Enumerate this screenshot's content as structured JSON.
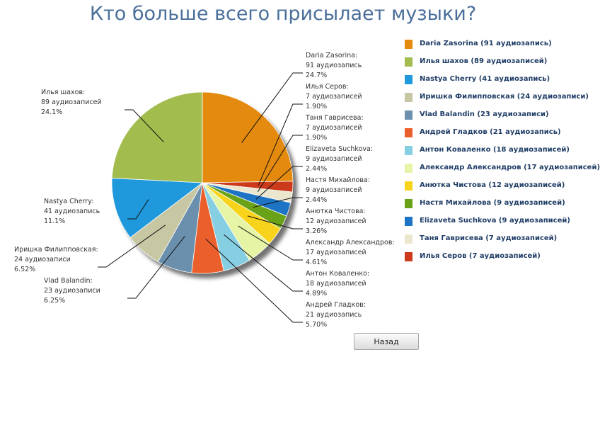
{
  "chart_data": {
    "type": "pie",
    "title": "Кто больше всего присылает музыки?",
    "slices": [
      {
        "name": "Daria Zasorina",
        "value": 91,
        "count_text": "91 аудиозапись",
        "percent_text": "24.7%",
        "color": "#e48a0e",
        "legend": "Daria Zasorina (91 аудиозапись)"
      },
      {
        "name": "Илья Серов",
        "value": 7,
        "count_text": "7 аудиозаписей",
        "percent_text": "1.90%",
        "color": "#cc3a1c",
        "legend": "Илья Серов (7 аудиозаписей)"
      },
      {
        "name": "Таня Гаврисева",
        "value": 7,
        "count_text": "7 аудиозаписей",
        "percent_text": "1.90%",
        "color": "#ebe7cf",
        "legend": "Таня Гаврисева (7 аудиозаписей)"
      },
      {
        "name": "Elizaveta Suchkova",
        "value": 9,
        "count_text": "9 аудиозаписей",
        "percent_text": "2.44%",
        "color": "#1d73c4",
        "legend": "Elizaveta Suchkova (9 аудиозаписей)"
      },
      {
        "name": "Настя Михайлова",
        "value": 9,
        "count_text": "9 аудиозаписей",
        "percent_text": "2.44%",
        "color": "#6aa217",
        "legend": "Настя Михайлова (9 аудиозаписей)"
      },
      {
        "name": "Анютка Чистова",
        "value": 12,
        "count_text": "12 аудиозаписей",
        "percent_text": "3.26%",
        "color": "#f8d31b",
        "legend": "Анютка Чистова (12 аудиозаписей)"
      },
      {
        "name": "Александр Александров",
        "value": 17,
        "count_text": "17 аудиозаписей",
        "percent_text": "4.61%",
        "color": "#e6f5a5",
        "legend": "Александр Александров (17 аудиозаписей)"
      },
      {
        "name": "Антон Коваленко",
        "value": 18,
        "count_text": "18 аудиозаписей",
        "percent_text": "4.89%",
        "color": "#86cfe2",
        "legend": "Антон Коваленко (18 аудиозаписей)"
      },
      {
        "name": "Андрей Гладков",
        "value": 21,
        "count_text": "21 аудиозапись",
        "percent_text": "5.70%",
        "color": "#ea5f2c",
        "legend": "Андрей Гладков (21 аудиозапись)"
      },
      {
        "name": "Vlad Balandin",
        "value": 23,
        "count_text": "23 аудиозаписи",
        "percent_text": "6.25%",
        "color": "#6b90ad",
        "legend": "Vlad Balandin (23 аудиозаписи)"
      },
      {
        "name": "Иришка Филипповская",
        "value": 24,
        "count_text": "24 аудиозаписи",
        "percent_text": "6.52%",
        "color": "#c8c7a3",
        "legend": "Иришка Филипповская (24 аудиозаписи)"
      },
      {
        "name": "Nastya Cherry",
        "value": 41,
        "count_text": "41 аудиозапись",
        "percent_text": "11.1%",
        "color": "#1f99dc",
        "legend": "Nastya Cherry (41 аудиозапись)"
      },
      {
        "name": "Илья шахов",
        "value": 89,
        "count_text": "89 аудиозаписей",
        "percent_text": "24.1%",
        "color": "#a2bd4e",
        "legend": "Илья шахов (89 аудиозаписей)"
      }
    ],
    "legend_order": [
      "Daria Zasorina",
      "Илья шахов",
      "Nastya Cherry",
      "Иришка Филипповская",
      "Vlad Balandin",
      "Андрей Гладков",
      "Антон Коваленко",
      "Александр Александров",
      "Анютка Чистова",
      "Настя Михайлова",
      "Elizaveta Suchkova",
      "Таня Гаврисева",
      "Илья Серов"
    ],
    "legend_position": "right",
    "labels_outside": true
  },
  "back_button_label": "Назад"
}
